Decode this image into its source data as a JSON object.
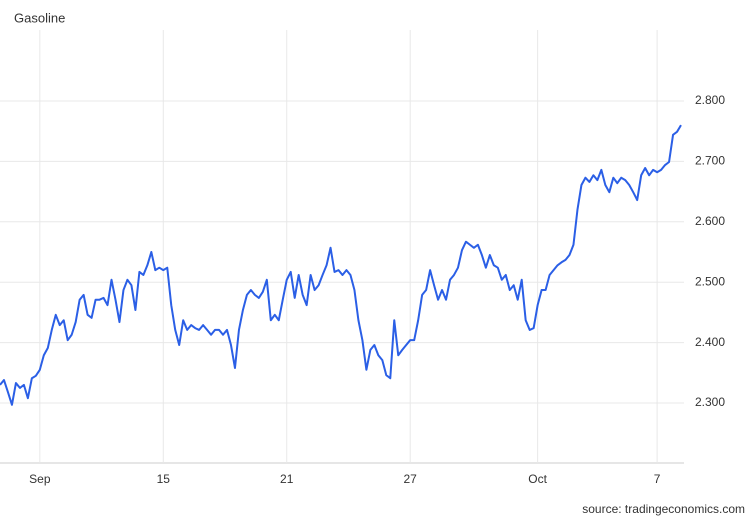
{
  "chart_data": {
    "type": "line",
    "title": "Gasoline",
    "source": "source: tradingeconomics.com",
    "color": "#2b5fe6",
    "grid": true,
    "categories": [
      null,
      null,
      null,
      null,
      null,
      null,
      null,
      null,
      null,
      null,
      "Sep",
      null,
      null,
      null,
      null,
      null,
      null,
      null,
      null,
      null,
      null,
      null,
      null,
      null,
      null,
      null,
      null,
      null,
      null,
      null,
      null,
      null,
      null,
      null,
      null,
      null,
      null,
      null,
      null,
      null,
      null,
      "15",
      null,
      null,
      null,
      null,
      null,
      null,
      null,
      null,
      null,
      null,
      null,
      null,
      null,
      null,
      null,
      null,
      null,
      null,
      null,
      null,
      null,
      null,
      null,
      null,
      null,
      null,
      null,
      null,
      null,
      null,
      "21",
      null,
      null,
      null,
      null,
      null,
      null,
      null,
      null,
      null,
      null,
      null,
      null,
      null,
      null,
      null,
      null,
      null,
      null,
      null,
      null,
      null,
      null,
      null,
      null,
      null,
      null,
      null,
      null,
      null,
      null,
      "27",
      null,
      null,
      null,
      null,
      null,
      null,
      null,
      null,
      null,
      null,
      null,
      null,
      null,
      null,
      null,
      null,
      null,
      null,
      null,
      null,
      null,
      null,
      null,
      null,
      null,
      null,
      null,
      null,
      null,
      null,
      null,
      "Oct",
      null,
      null,
      null,
      null,
      null,
      null,
      null,
      null,
      null,
      null,
      null,
      null,
      null,
      null,
      null,
      null,
      null,
      null,
      null,
      null,
      null,
      null,
      null,
      null,
      null,
      null,
      null,
      null,
      null,
      "7",
      null,
      null,
      null,
      null,
      null,
      null
    ],
    "values": [
      2.33,
      2.338,
      2.318,
      2.297,
      2.333,
      2.325,
      2.33,
      2.308,
      2.341,
      2.345,
      2.355,
      2.379,
      2.391,
      2.421,
      2.446,
      2.429,
      2.437,
      2.404,
      2.413,
      2.434,
      2.471,
      2.479,
      2.446,
      2.441,
      2.471,
      2.471,
      2.474,
      2.462,
      2.504,
      2.471,
      2.434,
      2.487,
      2.504,
      2.495,
      2.454,
      2.517,
      2.512,
      2.528,
      2.55,
      2.52,
      2.524,
      2.52,
      2.524,
      2.462,
      2.421,
      2.396,
      2.437,
      2.421,
      2.429,
      2.424,
      2.421,
      2.429,
      2.421,
      2.413,
      2.421,
      2.421,
      2.413,
      2.421,
      2.396,
      2.358,
      2.421,
      2.454,
      2.479,
      2.487,
      2.479,
      2.474,
      2.484,
      2.504,
      2.437,
      2.446,
      2.437,
      2.471,
      2.504,
      2.517,
      2.474,
      2.512,
      2.479,
      2.462,
      2.512,
      2.487,
      2.495,
      2.512,
      2.528,
      2.557,
      2.517,
      2.52,
      2.512,
      2.52,
      2.512,
      2.487,
      2.437,
      2.404,
      2.355,
      2.388,
      2.396,
      2.379,
      2.371,
      2.346,
      2.341,
      2.437,
      2.379,
      2.388,
      2.396,
      2.404,
      2.404,
      2.437,
      2.479,
      2.487,
      2.52,
      2.495,
      2.471,
      2.487,
      2.471,
      2.504,
      2.512,
      2.524,
      2.553,
      2.567,
      2.562,
      2.557,
      2.562,
      2.545,
      2.524,
      2.545,
      2.528,
      2.524,
      2.504,
      2.512,
      2.487,
      2.495,
      2.471,
      2.504,
      2.437,
      2.421,
      2.424,
      2.462,
      2.487,
      2.487,
      2.512,
      2.52,
      2.528,
      2.533,
      2.537,
      2.545,
      2.562,
      2.62,
      2.661,
      2.673,
      2.666,
      2.677,
      2.669,
      2.686,
      2.661,
      2.649,
      2.673,
      2.664,
      2.673,
      2.669,
      2.661,
      2.649,
      2.636,
      2.677,
      2.689,
      2.677,
      2.686,
      2.682,
      2.686,
      2.694,
      2.699,
      2.744,
      2.749,
      2.76
    ],
    "ylim": [
      2.2,
      2.9
    ],
    "yticks": [
      {
        "value": 2.3,
        "label": "2.300"
      },
      {
        "value": 2.4,
        "label": "2.400"
      },
      {
        "value": 2.5,
        "label": "2.500"
      },
      {
        "value": 2.6,
        "label": "2.600"
      },
      {
        "value": 2.7,
        "label": "2.700"
      },
      {
        "value": 2.8,
        "label": "2.800"
      }
    ]
  }
}
